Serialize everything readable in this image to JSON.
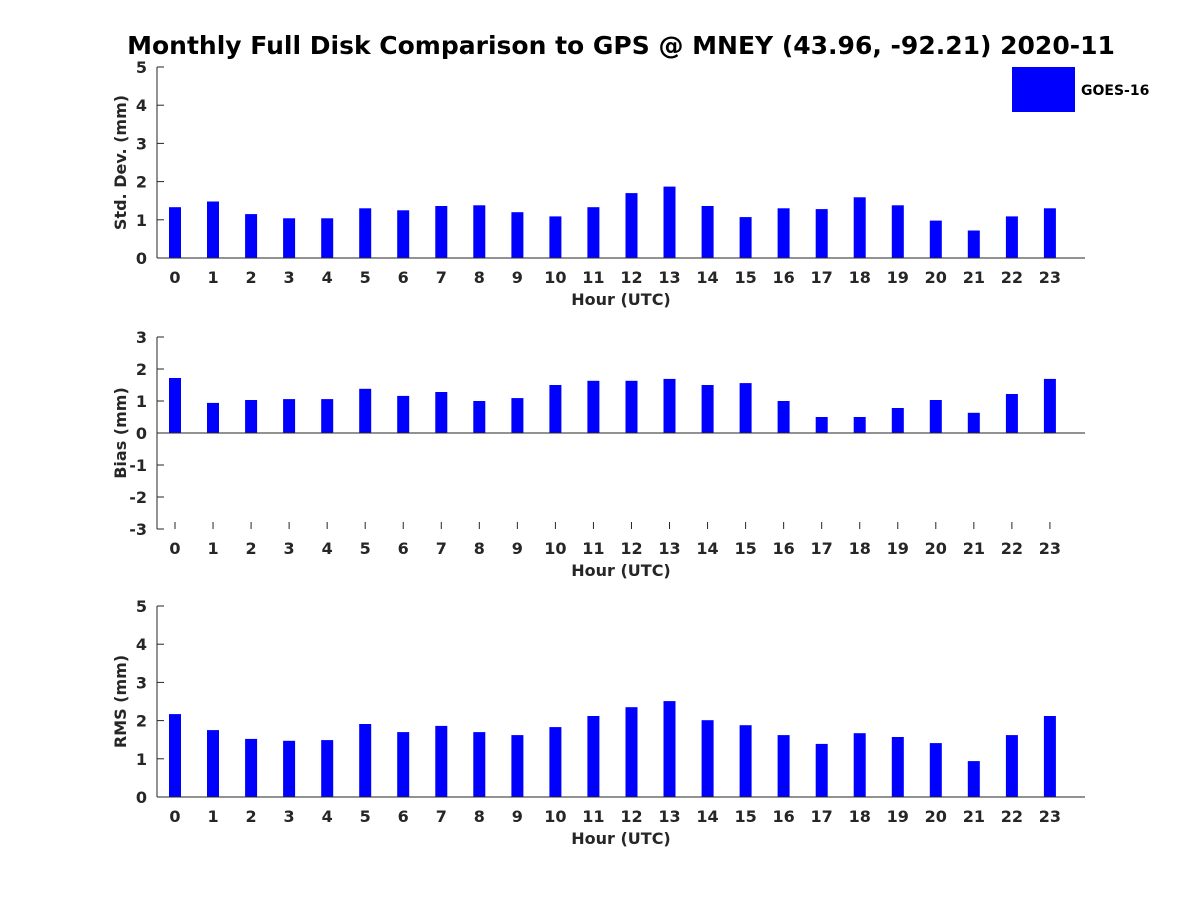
{
  "figure": {
    "title": "Monthly Full Disk Comparison to GPS @ MNEY (43.96, -92.21) 2020-11"
  },
  "legend": {
    "label": "GOES-16",
    "color": "#0000ff",
    "placement": "top-right"
  },
  "chart_data": [
    {
      "type": "bar",
      "title": "Monthly Full Disk Comparison to GPS @ MNEY (43.96, -92.21) 2020-11",
      "xlabel": "Hour (UTC)",
      "ylabel": "Std. Dev. (mm)",
      "ylim": [
        0,
        5
      ],
      "yticks": [
        0,
        1,
        2,
        3,
        4,
        5
      ],
      "grid": false,
      "categories": [
        "0",
        "1",
        "2",
        "3",
        "4",
        "5",
        "6",
        "7",
        "8",
        "9",
        "10",
        "11",
        "12",
        "13",
        "14",
        "15",
        "16",
        "17",
        "18",
        "19",
        "20",
        "21",
        "22",
        "23"
      ],
      "series": [
        {
          "name": "GOES-16",
          "color": "#0000ff",
          "values": [
            1.33,
            1.48,
            1.15,
            1.04,
            1.04,
            1.3,
            1.25,
            1.36,
            1.38,
            1.2,
            1.09,
            1.33,
            1.7,
            1.87,
            1.36,
            1.07,
            1.3,
            1.28,
            1.59,
            1.38,
            0.98,
            0.72,
            1.09,
            1.3
          ]
        }
      ]
    },
    {
      "type": "bar",
      "xlabel": "Hour (UTC)",
      "ylabel": "Bias (mm)",
      "ylim": [
        -3,
        3
      ],
      "yticks": [
        -3,
        -2,
        -1,
        0,
        1,
        2,
        3
      ],
      "grid": false,
      "categories": [
        "0",
        "1",
        "2",
        "3",
        "4",
        "5",
        "6",
        "7",
        "8",
        "9",
        "10",
        "11",
        "12",
        "13",
        "14",
        "15",
        "16",
        "17",
        "18",
        "19",
        "20",
        "21",
        "22",
        "23"
      ],
      "series": [
        {
          "name": "GOES-16",
          "color": "#0000ff",
          "values": [
            1.72,
            0.94,
            1.03,
            1.06,
            1.06,
            1.38,
            1.16,
            1.28,
            1.0,
            1.09,
            1.5,
            1.63,
            1.63,
            1.69,
            1.5,
            1.56,
            1.0,
            0.5,
            0.5,
            0.78,
            1.03,
            0.63,
            1.22,
            1.69
          ]
        }
      ]
    },
    {
      "type": "bar",
      "xlabel": "Hour (UTC)",
      "ylabel": "RMS (mm)",
      "ylim": [
        0,
        5
      ],
      "yticks": [
        0,
        1,
        2,
        3,
        4,
        5
      ],
      "grid": false,
      "categories": [
        "0",
        "1",
        "2",
        "3",
        "4",
        "5",
        "6",
        "7",
        "8",
        "9",
        "10",
        "11",
        "12",
        "13",
        "14",
        "15",
        "16",
        "17",
        "18",
        "19",
        "20",
        "21",
        "22",
        "23"
      ],
      "series": [
        {
          "name": "GOES-16",
          "color": "#0000ff",
          "values": [
            2.17,
            1.75,
            1.52,
            1.47,
            1.49,
            1.91,
            1.7,
            1.86,
            1.7,
            1.62,
            1.83,
            2.12,
            2.35,
            2.51,
            2.01,
            1.88,
            1.62,
            1.39,
            1.67,
            1.57,
            1.41,
            0.94,
            1.62,
            2.12
          ]
        }
      ]
    }
  ]
}
